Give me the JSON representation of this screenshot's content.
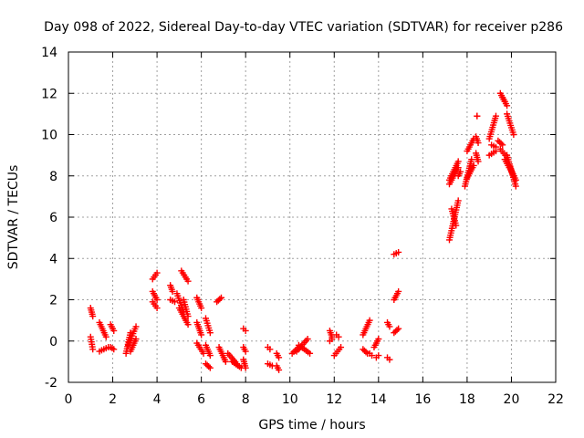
{
  "chart_data": {
    "type": "scatter",
    "title": "Day 098 of 2022, Sidereal Day-to-day VTEC variation (SDTVAR) for receiver p286",
    "xlabel": "GPS time / hours",
    "ylabel": "SDTVAR / TECUs",
    "xlim": [
      0,
      22
    ],
    "ylim": [
      -2,
      14
    ],
    "x_ticks": [
      "0",
      "2",
      "4",
      "6",
      "8",
      "10",
      "12",
      "14",
      "16",
      "18",
      "20",
      "22"
    ],
    "y_ticks": [
      "-2",
      "0",
      "2",
      "4",
      "6",
      "8",
      "10",
      "12",
      "14"
    ],
    "grid": true,
    "marker": "plus",
    "marker_color": "#ff0000",
    "series": [
      {
        "name": "SDTVAR",
        "segments": [
          {
            "x": [
              1.0,
              1.1
            ],
            "y": [
              1.6,
              1.2
            ]
          },
          {
            "x": [
              1.0,
              1.1
            ],
            "y": [
              0.2,
              -0.4
            ]
          },
          {
            "x": [
              1.4,
              1.7
            ],
            "y": [
              0.9,
              0.2
            ]
          },
          {
            "x": [
              1.4,
              1.8
            ],
            "y": [
              -0.5,
              -0.3
            ]
          },
          {
            "x": [
              1.9,
              2.05
            ],
            "y": [
              0.8,
              0.5
            ]
          },
          {
            "x": [
              1.9,
              2.05
            ],
            "y": [
              -0.3,
              -0.4
            ]
          },
          {
            "x": [
              2.6,
              2.8
            ],
            "y": [
              -0.6,
              0.4
            ]
          },
          {
            "x": [
              2.7,
              3.05
            ],
            "y": [
              -0.2,
              0.7
            ]
          },
          {
            "x": [
              2.8,
              3.05
            ],
            "y": [
              -0.5,
              0.1
            ]
          },
          {
            "x": [
              3.8,
              4.0
            ],
            "y": [
              3.0,
              3.3
            ]
          },
          {
            "x": [
              3.8,
              4.0
            ],
            "y": [
              2.4,
              2.0
            ]
          },
          {
            "x": [
              3.8,
              4.0
            ],
            "y": [
              1.9,
              1.6
            ]
          },
          {
            "x": [
              4.6,
              4.7
            ],
            "y": [
              2.7,
              2.4
            ]
          },
          {
            "x": [
              4.6,
              4.8
            ],
            "y": [
              2.0,
              1.9
            ]
          },
          {
            "x": [
              4.9,
              5.2
            ],
            "y": [
              2.3,
              1.4
            ]
          },
          {
            "x": [
              5.0,
              5.4
            ],
            "y": [
              1.6,
              0.8
            ]
          },
          {
            "x": [
              5.1,
              5.4
            ],
            "y": [
              3.4,
              2.9
            ]
          },
          {
            "x": [
              5.2,
              5.4
            ],
            "y": [
              2.0,
              1.2
            ]
          },
          {
            "x": [
              5.8,
              6.0
            ],
            "y": [
              2.1,
              1.6
            ]
          },
          {
            "x": [
              5.8,
              6.0
            ],
            "y": [
              0.9,
              0.3
            ]
          },
          {
            "x": [
              5.8,
              6.1
            ],
            "y": [
              -0.1,
              -0.6
            ]
          },
          {
            "x": [
              6.2,
              6.4
            ],
            "y": [
              1.1,
              0.4
            ]
          },
          {
            "x": [
              6.2,
              6.4
            ],
            "y": [
              -0.2,
              -0.7
            ]
          },
          {
            "x": [
              6.2,
              6.4
            ],
            "y": [
              -1.1,
              -1.3
            ]
          },
          {
            "x": [
              6.7,
              6.9
            ],
            "y": [
              1.9,
              2.1
            ]
          },
          {
            "x": [
              6.8,
              7.1
            ],
            "y": [
              -0.3,
              -1.0
            ]
          },
          {
            "x": [
              7.2,
              7.6
            ],
            "y": [
              -0.6,
              -1.1
            ]
          },
          {
            "x": [
              7.4,
              7.8
            ],
            "y": [
              -1.0,
              -1.3
            ]
          },
          {
            "x": [
              7.9,
              8.0
            ],
            "y": [
              0.6,
              0.5
            ]
          },
          {
            "x": [
              7.9,
              8.0
            ],
            "y": [
              -0.3,
              -0.5
            ]
          },
          {
            "x": [
              7.9,
              8.0
            ],
            "y": [
              -0.9,
              -1.3
            ]
          },
          {
            "x": [
              9.0,
              9.1
            ],
            "y": [
              -0.3,
              -0.4
            ]
          },
          {
            "x": [
              9.0,
              9.2
            ],
            "y": [
              -1.1,
              -1.2
            ]
          },
          {
            "x": [
              9.4,
              9.5
            ],
            "y": [
              -0.6,
              -0.8
            ]
          },
          {
            "x": [
              9.4,
              9.5
            ],
            "y": [
              -1.2,
              -1.4
            ]
          },
          {
            "x": [
              10.1,
              10.4
            ],
            "y": [
              -0.6,
              -0.3
            ]
          },
          {
            "x": [
              10.3,
              10.8
            ],
            "y": [
              -0.5,
              0.1
            ]
          },
          {
            "x": [
              10.4,
              10.9
            ],
            "y": [
              -0.2,
              -0.6
            ]
          },
          {
            "x": [
              11.8,
              11.9
            ],
            "y": [
              0.5,
              0.2
            ]
          },
          {
            "x": [
              11.8,
              11.9
            ],
            "y": [
              0.0,
              0.1
            ]
          },
          {
            "x": [
              12.1,
              12.2
            ],
            "y": [
              0.3,
              0.2
            ]
          },
          {
            "x": [
              12.0,
              12.3
            ],
            "y": [
              -0.7,
              -0.3
            ]
          },
          {
            "x": [
              13.3,
              13.6
            ],
            "y": [
              0.3,
              1.0
            ]
          },
          {
            "x": [
              13.3,
              13.5
            ],
            "y": [
              -0.4,
              -0.6
            ]
          },
          {
            "x": [
              13.6,
              13.7
            ],
            "y": [
              -0.6,
              -0.7
            ]
          },
          {
            "x": [
              13.8,
              14.0
            ],
            "y": [
              -0.3,
              0.1
            ]
          },
          {
            "x": [
              13.9,
              14.0
            ],
            "y": [
              -0.8,
              -0.7
            ]
          },
          {
            "x": [
              14.4,
              14.5
            ],
            "y": [
              0.9,
              0.7
            ]
          },
          {
            "x": [
              14.4,
              14.5
            ],
            "y": [
              -0.8,
              -0.9
            ]
          },
          {
            "x": [
              14.7,
              14.9
            ],
            "y": [
              4.2,
              4.3
            ]
          },
          {
            "x": [
              14.7,
              14.9
            ],
            "y": [
              2.0,
              2.4
            ]
          },
          {
            "x": [
              14.7,
              14.9
            ],
            "y": [
              0.4,
              0.6
            ]
          },
          {
            "x": [
              17.2,
              17.6
            ],
            "y": [
              7.6,
              8.4
            ]
          },
          {
            "x": [
              17.2,
              17.6
            ],
            "y": [
              7.8,
              8.7
            ]
          },
          {
            "x": [
              17.2,
              17.6
            ],
            "y": [
              4.9,
              6.8
            ]
          },
          {
            "x": [
              17.3,
              17.5
            ],
            "y": [
              6.4,
              5.6
            ]
          },
          {
            "x": [
              17.6,
              17.7
            ],
            "y": [
              8.0,
              8.2
            ]
          },
          {
            "x": [
              17.9,
              18.2
            ],
            "y": [
              7.5,
              8.8
            ]
          },
          {
            "x": [
              18.0,
              18.3
            ],
            "y": [
              9.2,
              9.8
            ]
          },
          {
            "x": [
              18.0,
              18.3
            ],
            "y": [
              7.9,
              8.5
            ]
          },
          {
            "x": [
              18.4,
              18.5
            ],
            "y": [
              9.9,
              9.6
            ]
          },
          {
            "x": [
              18.4,
              18.5
            ],
            "y": [
              9.1,
              8.7
            ]
          },
          {
            "x": [
              18.45,
              18.45
            ],
            "y": [
              10.9,
              10.9
            ]
          },
          {
            "x": [
              19.0,
              19.3
            ],
            "y": [
              9.8,
              10.9
            ]
          },
          {
            "x": [
              19.1,
              19.3
            ],
            "y": [
              9.5,
              9.4
            ]
          },
          {
            "x": [
              19.0,
              19.3
            ],
            "y": [
              9.0,
              9.2
            ]
          },
          {
            "x": [
              19.4,
              19.6
            ],
            "y": [
              9.7,
              9.5
            ]
          },
          {
            "x": [
              19.5,
              19.8
            ],
            "y": [
              9.3,
              8.9
            ]
          },
          {
            "x": [
              19.5,
              19.7
            ],
            "y": [
              12.0,
              11.6
            ]
          },
          {
            "x": [
              19.6,
              19.8
            ],
            "y": [
              11.8,
              11.4
            ]
          },
          {
            "x": [
              19.8,
              20.1
            ],
            "y": [
              11.0,
              10.0
            ]
          },
          {
            "x": [
              19.8,
              20.2
            ],
            "y": [
              9.0,
              7.5
            ]
          },
          {
            "x": [
              19.7,
              20.1
            ],
            "y": [
              8.8,
              8.0
            ]
          },
          {
            "x": [
              19.9,
              20.2
            ],
            "y": [
              8.5,
              7.8
            ]
          }
        ]
      }
    ]
  }
}
